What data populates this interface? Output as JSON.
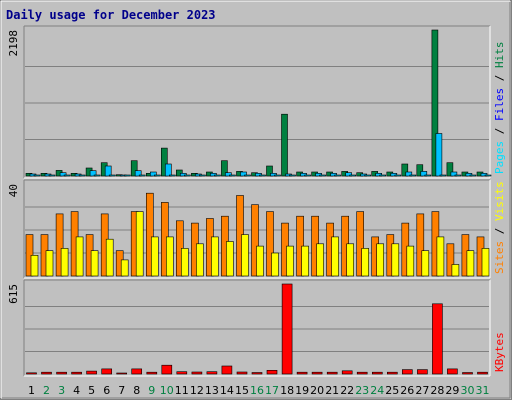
{
  "chart_data": {
    "type": "bar",
    "title": "Daily usage for December 2023",
    "categories": [
      "1",
      "2",
      "3",
      "4",
      "5",
      "6",
      "7",
      "8",
      "9",
      "10",
      "11",
      "12",
      "13",
      "14",
      "15",
      "16",
      "17",
      "18",
      "19",
      "20",
      "21",
      "22",
      "23",
      "24",
      "25",
      "26",
      "27",
      "28",
      "29",
      "30",
      "31"
    ],
    "weekend_days": [
      "2",
      "3",
      "9",
      "10",
      "16",
      "17",
      "23",
      "24",
      "30",
      "31"
    ],
    "colors": {
      "hits": "#008040",
      "files": "#00c0ff",
      "pages": "#00e0ff",
      "visits": "#ff8000",
      "sites": "#ffff00",
      "kbytes": "#ff0000",
      "weekday_label": "#000000",
      "weekend_label": "#008040",
      "title": "#00008b",
      "background": "#c0c0c0",
      "plot_background": "#c0c0c0"
    },
    "panels": [
      {
        "name": "hits-files-pages",
        "ylabel_max": "2198",
        "ylim": [
          0,
          2198
        ],
        "side_labels": [
          {
            "text": "Pages",
            "color": "#00e0ff"
          },
          {
            "text": " / ",
            "color": "#000000"
          },
          {
            "text": "Files",
            "color": "#0000ff"
          },
          {
            "text": " / ",
            "color": "#000000"
          },
          {
            "text": "Hits",
            "color": "#008040"
          }
        ],
        "series": [
          {
            "name": "Hits",
            "values": [
              40,
              40,
              85,
              40,
              120,
              200,
              20,
              230,
              40,
              420,
              90,
              40,
              60,
              230,
              70,
              50,
              150,
              930,
              60,
              60,
              60,
              70,
              50,
              70,
              60,
              180,
              170,
              2198,
              200,
              60,
              60
            ]
          },
          {
            "name": "Files",
            "values": [
              30,
              30,
              50,
              30,
              80,
              150,
              10,
              80,
              60,
              180,
              40,
              30,
              40,
              50,
              60,
              40,
              40,
              30,
              40,
              40,
              40,
              50,
              30,
              40,
              40,
              60,
              70,
              640,
              60,
              40,
              40
            ]
          },
          {
            "name": "Pages",
            "values": [
              5,
              5,
              5,
              5,
              5,
              5,
              5,
              5,
              5,
              5,
              5,
              5,
              5,
              5,
              5,
              5,
              5,
              5,
              5,
              5,
              5,
              5,
              5,
              5,
              5,
              5,
              5,
              5,
              5,
              5,
              5
            ]
          }
        ]
      },
      {
        "name": "visits-sites",
        "ylabel_max": "40",
        "ylim": [
          0,
          40
        ],
        "side_labels": [
          {
            "text": "Sites",
            "color": "#ff8000"
          },
          {
            "text": " / ",
            "color": "#000000"
          },
          {
            "text": "Visits",
            "color": "#ffff00"
          }
        ],
        "series": [
          {
            "name": "Visits",
            "values": [
              18,
              18,
              27,
              28,
              18,
              27,
              11,
              28,
              36,
              32,
              24,
              23,
              25,
              26,
              35,
              31,
              28,
              23,
              26,
              26,
              23,
              26,
              28,
              17,
              18,
              23,
              27,
              28,
              14,
              18,
              17
            ]
          },
          {
            "name": "Sites",
            "values": [
              9,
              11,
              12,
              17,
              11,
              16,
              7,
              28,
              17,
              17,
              12,
              14,
              17,
              15,
              18,
              13,
              10,
              13,
              13,
              14,
              17,
              14,
              12,
              14,
              14,
              13,
              11,
              17,
              5,
              11,
              12
            ]
          }
        ]
      },
      {
        "name": "kbytes",
        "ylabel_max": "615",
        "ylim": [
          0,
          615
        ],
        "side_labels": [
          {
            "text": "KBytes",
            "color": "#ff0000"
          }
        ],
        "series": [
          {
            "name": "KBytes",
            "values": [
              8,
              12,
              12,
              12,
              20,
              35,
              4,
              35,
              12,
              60,
              16,
              14,
              16,
              55,
              14,
              10,
              25,
              615,
              12,
              12,
              12,
              22,
              12,
              12,
              12,
              30,
              30,
              480,
              35,
              10,
              12
            ]
          }
        ]
      }
    ]
  }
}
